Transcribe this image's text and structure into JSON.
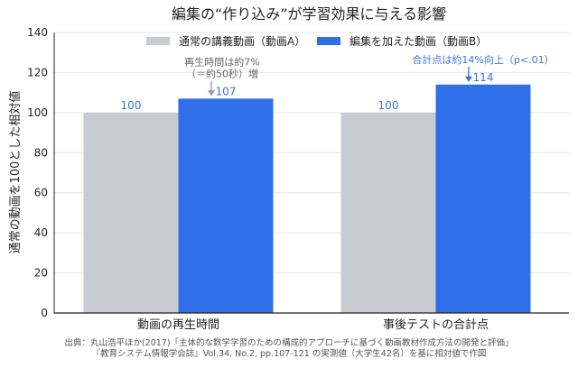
{
  "chart_data": {
    "type": "bar",
    "title": "編集の“作り込み”が学習効果に与える影響",
    "ylabel": "通常の動画を100とした相対値",
    "xlabel": "",
    "categories": [
      "動画の再生時間",
      "事後テストの合計点"
    ],
    "ylim": [
      0,
      140
    ],
    "yticks": [
      0,
      20,
      40,
      60,
      80,
      100,
      120,
      140
    ],
    "grid": true,
    "legend_position": "top",
    "series": [
      {
        "name": "通常の講義動画（動画A）",
        "values": [
          100,
          100
        ],
        "color": "#c8cbd2",
        "label_color": "#3b74e0"
      },
      {
        "name": "編集を加えた動画（動画B）",
        "values": [
          107,
          114
        ],
        "color": "#2f6fe8",
        "label_color": "#3b74e0"
      }
    ],
    "annotations": [
      {
        "category_index": 0,
        "series_index": 1,
        "lines": [
          "再生時間は約7%",
          "（＝約50秒）増"
        ],
        "color": "#666666",
        "arrow_color": "#999999"
      },
      {
        "category_index": 1,
        "series_index": 1,
        "lines": [
          "合計点は約14%向上（p<.01）"
        ],
        "color": "#3b74e0",
        "arrow_color": "#3b74e0"
      }
    ],
    "source_lines": [
      "出典：丸山浩平ほか(2017)「主体的な数学学習のための構成的アプローチに基づく動画教材作成方法の開発と評価」",
      "『教育システム情報学会誌』Vol.34, No.2, pp.107-121 の実測値（大学生42名）を基に相対値で作図"
    ]
  }
}
